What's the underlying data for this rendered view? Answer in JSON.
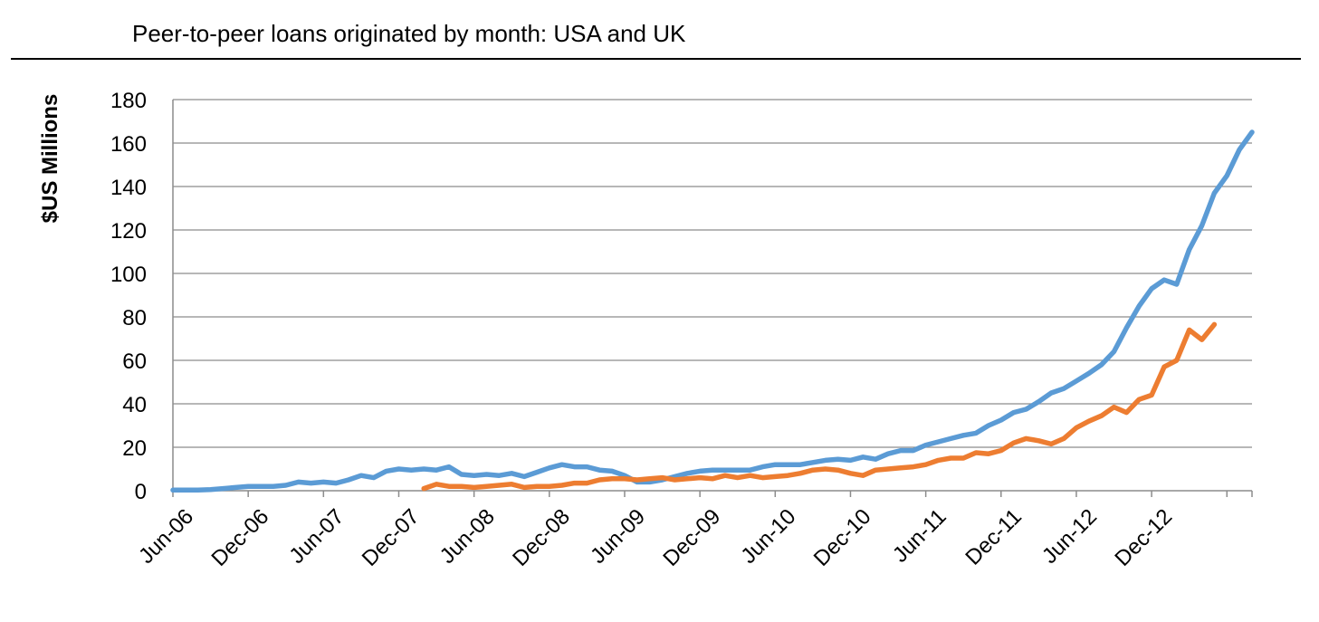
{
  "chart_data": {
    "type": "line",
    "title": "Peer-to-peer loans originated by month: USA and UK",
    "ylabel": "$US Millions",
    "xlabel": "",
    "ylim": [
      0,
      180
    ],
    "yticks": [
      "0",
      "20",
      "40",
      "60",
      "80",
      "100",
      "120",
      "140",
      "160",
      "180"
    ],
    "x_tick_labels": [
      "Jun-06",
      "Dec-06",
      "Jun-07",
      "Dec-07",
      "Jun-08",
      "Dec-08",
      "Jun-09",
      "Dec-09",
      "Jun-10",
      "Dec-10",
      "Jun-11",
      "Dec-11",
      "Jun-12",
      "Dec-12"
    ],
    "x_start": "Jun-06",
    "grid": "horizontal",
    "legend": "none",
    "series": [
      {
        "color": "#5b9bd5",
        "start_month_index": 0,
        "values": [
          0.3,
          0.3,
          0.3,
          0.5,
          1,
          1.5,
          2,
          2,
          2,
          2.5,
          4,
          3.5,
          4,
          3.5,
          5,
          7,
          6,
          9,
          10,
          9.5,
          10,
          9.5,
          11,
          7.5,
          7,
          7.5,
          7,
          8,
          6.5,
          8.5,
          10.5,
          12,
          11,
          11,
          9.5,
          9,
          7,
          4,
          4,
          5,
          6.5,
          8,
          9,
          9.5,
          9.5,
          9.5,
          9.5,
          11,
          12,
          12,
          12,
          13,
          14,
          14.5,
          14,
          15.5,
          14.5,
          17,
          18.5,
          18.5,
          21,
          22.5,
          24,
          25.5,
          26.5,
          30,
          32.5,
          36,
          37.5,
          41,
          45,
          47,
          50.5,
          54,
          58,
          64,
          75,
          85,
          93,
          97,
          95,
          111,
          122,
          137,
          145,
          157,
          165
        ]
      },
      {
        "color": "#ed7d31",
        "start_month_index": 20,
        "values": [
          1,
          3,
          2,
          2,
          1.5,
          2,
          2.5,
          3,
          1.5,
          2,
          2,
          2.5,
          3.5,
          3.5,
          5,
          5.5,
          5.5,
          5,
          5.5,
          6,
          5,
          5.5,
          6,
          5.5,
          7,
          6,
          7,
          6,
          6.5,
          7,
          8,
          9.5,
          10,
          9.5,
          8,
          7,
          9.5,
          10,
          10.5,
          11,
          12,
          14,
          15,
          15,
          17.5,
          17,
          18.5,
          22,
          24,
          23,
          21.5,
          24,
          29,
          32,
          34.5,
          38.5,
          36,
          42,
          44,
          57,
          60,
          74,
          69.5,
          76.5
        ]
      }
    ]
  }
}
